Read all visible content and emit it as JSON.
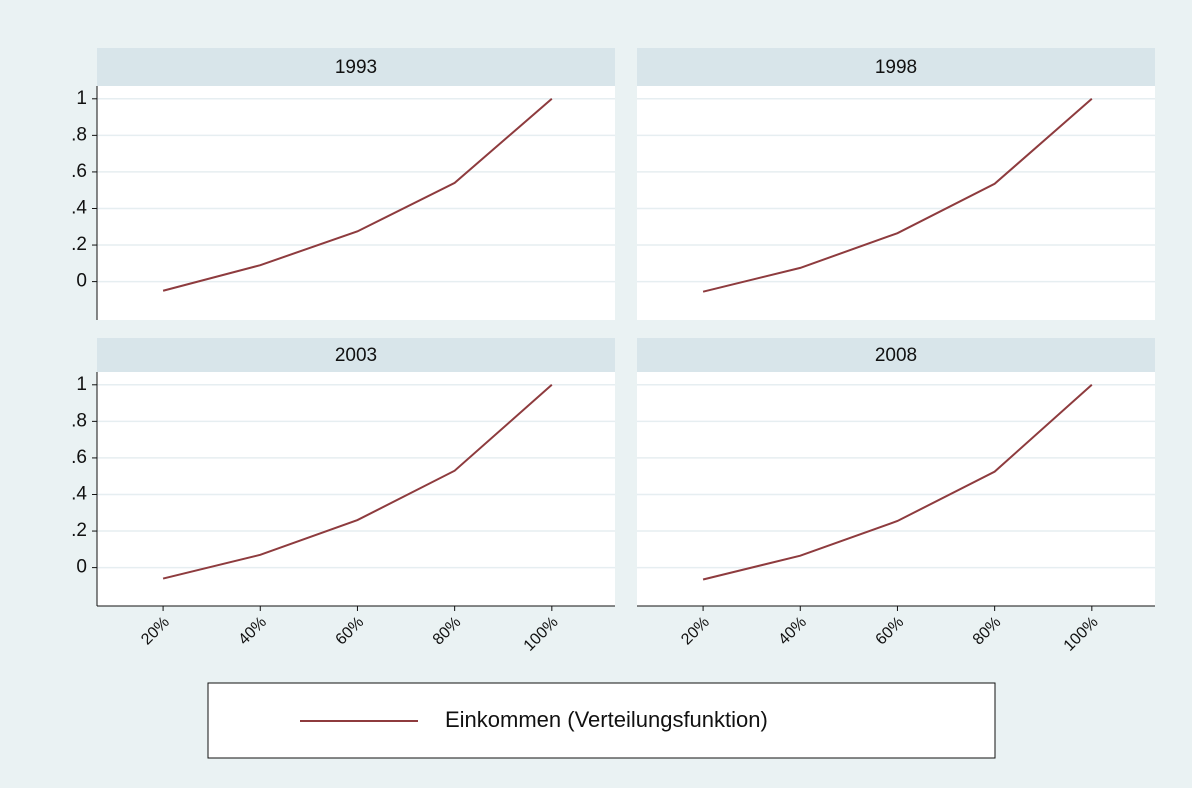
{
  "chart_data": [
    {
      "type": "line",
      "title": "1993",
      "values": [
        -0.05,
        0.09,
        0.275,
        0.54,
        1
      ],
      "color": "#8e3b3e",
      "ylim": [
        -0.21,
        1.07
      ],
      "yticks": [
        0,
        {
          "value": 0.2,
          "label": ".2"
        },
        {
          "value": 0.4,
          "label": ".4"
        },
        {
          "value": 0.6,
          "label": ".6"
        },
        {
          "value": 0.8,
          "label": ".8"
        },
        1
      ],
      "grid": true
    },
    {
      "type": "line",
      "title": "1998",
      "values": [
        -0.055,
        0.075,
        0.265,
        0.535,
        1
      ],
      "color": "#8e3b3e",
      "ylim": [
        -0.21,
        1.07
      ],
      "yticks": [
        0,
        0.2,
        0.4,
        0.6,
        0.8,
        1
      ],
      "grid": true
    },
    {
      "type": "line",
      "title": "2003",
      "categories": [
        "20%",
        "40%",
        "60%",
        "80%",
        "100%"
      ],
      "values": [
        -0.06,
        0.07,
        0.26,
        0.53,
        1
      ],
      "color": "#8e3b3e",
      "ylim": [
        -0.21,
        1.07
      ],
      "yticks": [
        0,
        {
          "value": 0.2,
          "label": ".2"
        },
        {
          "value": 0.4,
          "label": ".4"
        },
        {
          "value": 0.6,
          "label": ".6"
        },
        {
          "value": 0.8,
          "label": ".8"
        },
        1
      ],
      "grid": true
    },
    {
      "type": "line",
      "title": "2008",
      "categories": [
        "20%",
        "40%",
        "60%",
        "80%",
        "100%"
      ],
      "values": [
        -0.065,
        0.065,
        0.255,
        0.525,
        1
      ],
      "color": "#8e3b3e",
      "ylim": [
        -0.21,
        1.07
      ],
      "yticks": [
        0,
        0.2,
        0.4,
        0.6,
        0.8,
        1
      ],
      "grid": true
    }
  ],
  "legend": {
    "label": "Einkommen (Verteilungsfunktion)"
  }
}
